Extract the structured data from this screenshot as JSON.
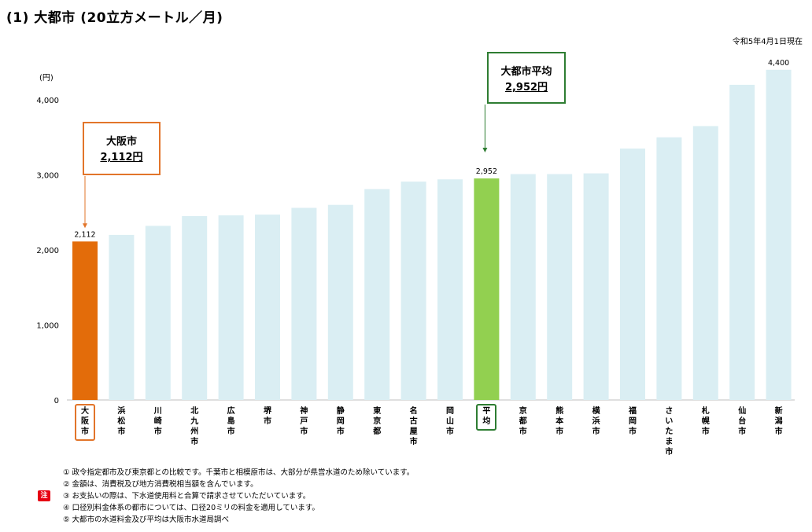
{
  "title": "(1) 大都市 (20立方メートル／月)",
  "as_of": "令和5年4月1日現在",
  "unit_label": "(円)",
  "callouts": {
    "osaka": {
      "name": "大阪市",
      "value": "2,112円"
    },
    "average": {
      "name": "大都市平均",
      "value": "2,952円"
    }
  },
  "note_tag": "注",
  "notes": [
    "① 政令指定都市及び東京都との比較です。千葉市と相模原市は、大部分が県営水道のため除いています。",
    "② 金額は、消費税及び地方消費税相当額を含んでいます。",
    "③ お支払いの際は、下水道使用料と合算で請求させていただいています。",
    "④ 口径別料金体系の都市については、口径20ミリの料金を適用しています。",
    "⑤ 大都市の水道料金及び平均は大阪市水道局調べ"
  ],
  "colors": {
    "osaka": "#e36c0a",
    "average": "#92d050",
    "default": "#daeef3",
    "osaka_callout": "#e2752a",
    "average_callout": "#2e7d32"
  },
  "chart_data": {
    "type": "bar",
    "ylabel": "(円)",
    "ylim": [
      0,
      4000
    ],
    "yticks": [
      0,
      1000,
      2000,
      3000,
      4000
    ],
    "ytick_labels": [
      "0",
      "1,000",
      "2,000",
      "3,000",
      "4,000"
    ],
    "categories": [
      "大阪市",
      "浜松市",
      "川崎市",
      "北九州市",
      "広島市",
      "堺市",
      "神戸市",
      "静岡市",
      "東京都",
      "名古屋市",
      "岡山市",
      "平均",
      "京都市",
      "熊本市",
      "横浜市",
      "福岡市",
      "さいたま市",
      "札幌市",
      "仙台市",
      "新潟市"
    ],
    "values": [
      2112,
      2200,
      2320,
      2450,
      2460,
      2470,
      2560,
      2600,
      2810,
      2910,
      2940,
      2952,
      3010,
      3010,
      3020,
      3350,
      3500,
      3650,
      4200,
      4400
    ],
    "data_labels": {
      "0": "2,112",
      "11": "2,952",
      "19": "4,400"
    },
    "highlight": {
      "0": "osaka",
      "11": "average"
    },
    "grid": false
  }
}
